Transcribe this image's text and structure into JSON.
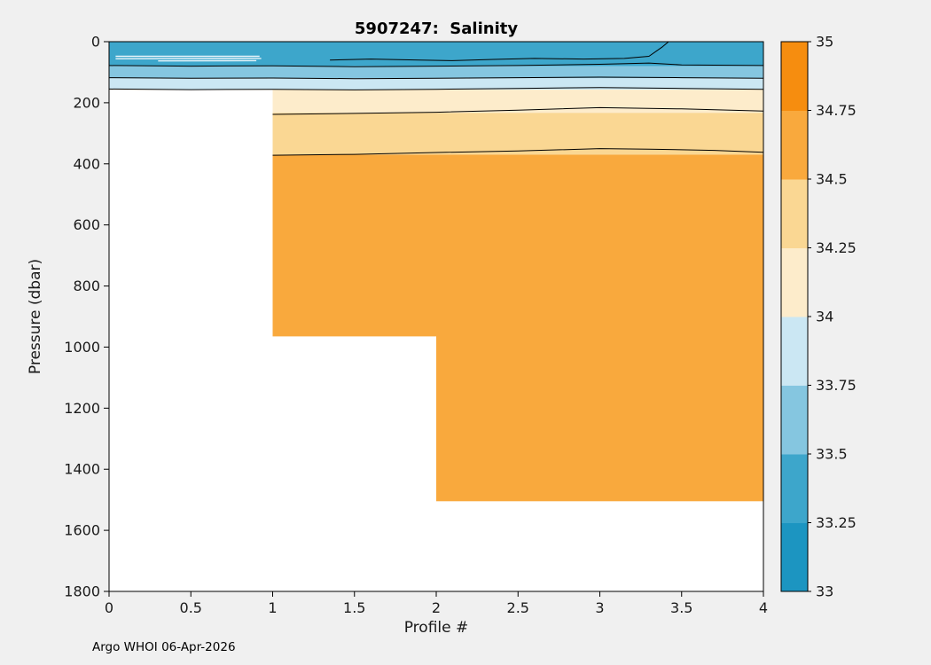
{
  "figure": {
    "background": "#f0f0f0",
    "footer": "Argo WHOI 06-Apr-2026"
  },
  "chart_data": {
    "type": "filled_contour",
    "title": "5907247:  Salinity",
    "xlabel": "Profile #",
    "ylabel": "Pressure (dbar)",
    "xlim": [
      0,
      4
    ],
    "ylim": [
      0,
      1800
    ],
    "y_reversed": true,
    "grid": false,
    "x_ticks": {
      "values": [
        0,
        0.5,
        1,
        1.5,
        2,
        2.5,
        3,
        3.5,
        4
      ],
      "labels": [
        "0",
        "0.5",
        "1",
        "1.5",
        "2",
        "2.5",
        "3",
        "3.5",
        "4"
      ]
    },
    "y_ticks": {
      "values": [
        0,
        200,
        400,
        600,
        800,
        1000,
        1200,
        1400,
        1600,
        1800
      ],
      "labels": [
        "0",
        "200",
        "400",
        "600",
        "800",
        "1000",
        "1200",
        "1400",
        "1600",
        "1800"
      ]
    },
    "colorbar": {
      "range": [
        33,
        35
      ],
      "step": 0.25,
      "position": "right",
      "colors": [
        "#1c95c1",
        "#3da6cb",
        "#85c6e0",
        "#cbe7f3",
        "#fdeccb",
        "#fad793",
        "#f9a93d",
        "#f68d0f"
      ],
      "ticks": {
        "values": [
          33,
          33.25,
          33.5,
          33.75,
          34,
          34.25,
          34.5,
          34.75,
          35
        ],
        "labels": [
          "33",
          "33.25",
          "33.5",
          "33.75",
          "34",
          "34.25",
          "34.5",
          "34.75",
          "35"
        ]
      }
    },
    "bands": [
      {
        "level": "33.25-33.5",
        "color": "#3da6cb",
        "x": [
          0,
          4
        ],
        "p": [
          0,
          80
        ]
      },
      {
        "level": "33.5-33.75",
        "color": "#85c6e0",
        "x": [
          0,
          4
        ],
        "p": [
          80,
          120
        ]
      },
      {
        "level": "33.75-34",
        "color": "#cbe7f3",
        "x": [
          0,
          4
        ],
        "p": [
          120,
          157
        ]
      },
      {
        "level": "34-34.25",
        "color": "#fdeccb",
        "x": [
          0,
          4
        ],
        "p": [
          157,
          233
        ]
      },
      {
        "level": "34.25-34.5",
        "color": "#fad793",
        "x": [
          0,
          4
        ],
        "p": [
          233,
          370
        ]
      },
      {
        "level": "34.5-34.75",
        "color": "#f9a93d",
        "x": [
          0,
          4
        ],
        "p": [
          370,
          1505
        ]
      }
    ],
    "no_data": [
      {
        "x": [
          0,
          1
        ],
        "p": [
          158,
          1800
        ]
      },
      {
        "x": [
          1,
          2
        ],
        "p": [
          965,
          1800
        ]
      },
      {
        "x": [
          2,
          4
        ],
        "p": [
          1505,
          1800
        ]
      }
    ],
    "profile_max_pressure": [
      {
        "profiles": "0-1",
        "max_dbar": 158
      },
      {
        "profiles": "1-2",
        "max_dbar": 965
      },
      {
        "profiles": "2-4",
        "max_dbar": 1505
      }
    ],
    "contours": [
      {
        "level": 33.25,
        "points": [
          [
            1.35,
            60
          ],
          [
            1.6,
            57
          ],
          [
            1.9,
            60
          ],
          [
            2.1,
            62
          ],
          [
            2.35,
            58
          ],
          [
            2.6,
            55
          ],
          [
            2.9,
            57
          ],
          [
            3.15,
            55
          ],
          [
            3.3,
            48
          ],
          [
            3.38,
            18
          ],
          [
            3.42,
            0
          ]
        ]
      },
      {
        "level": 33.5,
        "points": [
          [
            0,
            78
          ],
          [
            0.5,
            80
          ],
          [
            1,
            79
          ],
          [
            1.5,
            82
          ],
          [
            2,
            80
          ],
          [
            2.5,
            78
          ],
          [
            3,
            74
          ],
          [
            3.3,
            70
          ],
          [
            3.5,
            76
          ],
          [
            4,
            78
          ]
        ]
      },
      {
        "level": 33.75,
        "points": [
          [
            0,
            118
          ],
          [
            0.5,
            120
          ],
          [
            1,
            119
          ],
          [
            1.5,
            121
          ],
          [
            2,
            120
          ],
          [
            2.5,
            118
          ],
          [
            3,
            116
          ],
          [
            3.5,
            118
          ],
          [
            4,
            120
          ]
        ]
      },
      {
        "level": 34,
        "points": [
          [
            0,
            155
          ],
          [
            0.5,
            157
          ],
          [
            1,
            156
          ],
          [
            1.5,
            158
          ],
          [
            2,
            156
          ],
          [
            2.5,
            153
          ],
          [
            3,
            150
          ],
          [
            3.5,
            153
          ],
          [
            4,
            156
          ]
        ]
      },
      {
        "level": 34.25,
        "points": [
          [
            1,
            238
          ],
          [
            1.5,
            235
          ],
          [
            2,
            231
          ],
          [
            2.5,
            224
          ],
          [
            3,
            216
          ],
          [
            3.5,
            220
          ],
          [
            4,
            227
          ]
        ]
      },
      {
        "level": 34.5,
        "points": [
          [
            1,
            372
          ],
          [
            1.5,
            369
          ],
          [
            2,
            363
          ],
          [
            2.5,
            358
          ],
          [
            3,
            350
          ],
          [
            3.3,
            352
          ],
          [
            3.7,
            356
          ],
          [
            4,
            362
          ]
        ]
      }
    ],
    "surface_streaks": [
      {
        "points": [
          [
            0.04,
            48
          ],
          [
            0.92,
            48
          ]
        ]
      },
      {
        "points": [
          [
            0.04,
            56
          ],
          [
            0.93,
            55
          ]
        ]
      },
      {
        "points": [
          [
            0.3,
            63
          ],
          [
            0.9,
            62
          ]
        ]
      }
    ]
  }
}
